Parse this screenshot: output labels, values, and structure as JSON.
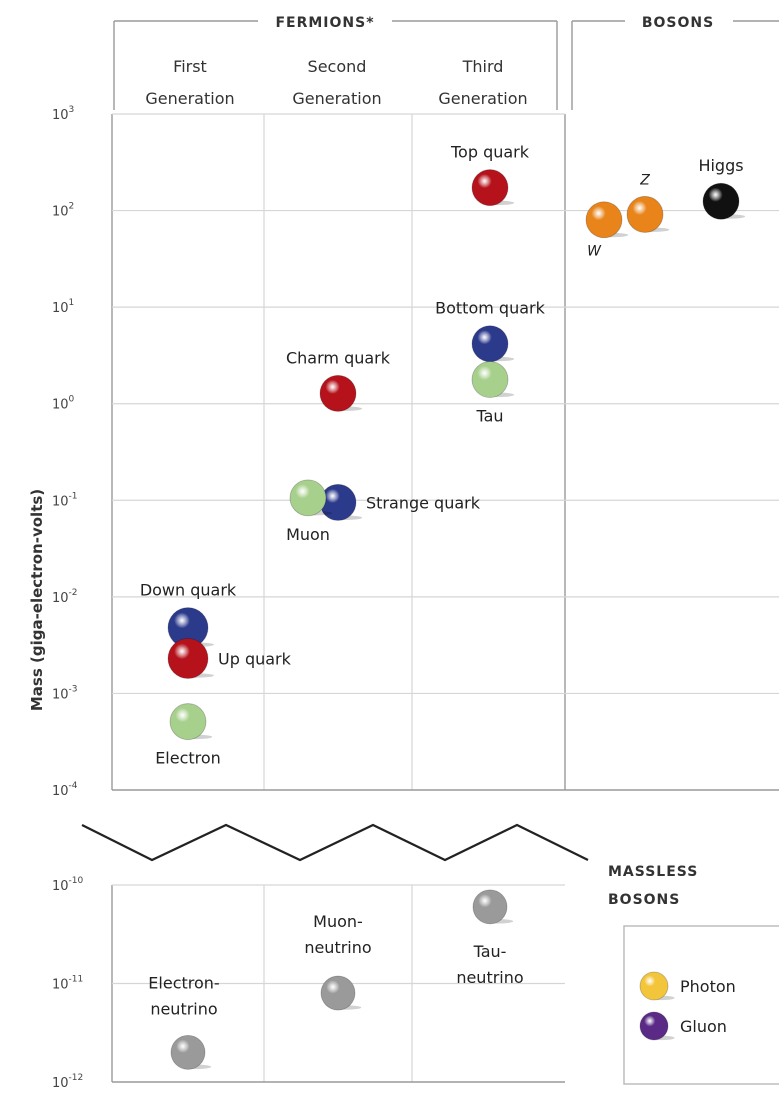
{
  "chart_data": {
    "type": "scatter",
    "ylabel": "Mass (giga-electron-volts)",
    "yscale": "log",
    "groups": {
      "fermions": "FERMIONS*",
      "bosons": "BOSONS"
    },
    "columns": [
      {
        "id": "gen1",
        "line1": "First",
        "line2": "Generation"
      },
      {
        "id": "gen2",
        "line1": "Second",
        "line2": "Generation"
      },
      {
        "id": "gen3",
        "line1": "Third",
        "line2": "Generation"
      }
    ],
    "upper_ticks": [
      {
        "base": "10",
        "exp": "3",
        "value": 1000
      },
      {
        "base": "10",
        "exp": "2",
        "value": 100
      },
      {
        "base": "10",
        "exp": "1",
        "value": 10
      },
      {
        "base": "10",
        "exp": "0",
        "value": 1
      },
      {
        "base": "10",
        "exp": "-1",
        "value": 0.1
      },
      {
        "base": "10",
        "exp": "-2",
        "value": 0.01
      },
      {
        "base": "10",
        "exp": "-3",
        "value": 0.001
      },
      {
        "base": "10",
        "exp": "-4",
        "value": 0.0001
      }
    ],
    "lower_ticks": [
      {
        "base": "10",
        "exp": "-10",
        "value": 1e-10
      },
      {
        "base": "10",
        "exp": "-11",
        "value": 1e-11
      },
      {
        "base": "10",
        "exp": "-12",
        "value": 1e-12
      }
    ],
    "upper_ylim": [
      0.0001,
      1000
    ],
    "lower_ylim": [
      1e-12,
      1e-10
    ],
    "particles": [
      {
        "name": "Down quark",
        "column": "gen1",
        "mass": 0.0048,
        "color": "#2c3a8c",
        "label_pos": "above"
      },
      {
        "name": "Up quark",
        "column": "gen1",
        "mass": 0.0023,
        "color": "#b5121b",
        "label_pos": "right"
      },
      {
        "name": "Electron",
        "column": "gen1",
        "mass": 0.000511,
        "color": "#a8d08d",
        "label_pos": "below"
      },
      {
        "name": "Charm quark",
        "column": "gen2",
        "mass": 1.28,
        "color": "#b5121b",
        "label_pos": "above"
      },
      {
        "name": "Strange quark",
        "column": "gen2",
        "mass": 0.095,
        "color": "#2c3a8c",
        "label_pos": "right"
      },
      {
        "name": "Muon",
        "column": "gen2",
        "mass": 0.106,
        "color": "#a8d08d",
        "label_pos": "below"
      },
      {
        "name": "Top quark",
        "column": "gen3",
        "mass": 173,
        "color": "#b5121b",
        "label_pos": "above"
      },
      {
        "name": "Bottom quark",
        "column": "gen3",
        "mass": 4.18,
        "color": "#2c3a8c",
        "label_pos": "above"
      },
      {
        "name": "Tau",
        "column": "gen3",
        "mass": 1.78,
        "color": "#a8d08d",
        "label_pos": "below"
      },
      {
        "name": "W",
        "column": "bosons",
        "mass": 80.4,
        "color": "#e8841a",
        "label_pos": "below-left"
      },
      {
        "name": "Z",
        "column": "bosons",
        "mass": 91.2,
        "color": "#e8841a",
        "label_pos": "above"
      },
      {
        "name": "Higgs",
        "column": "bosons",
        "mass": 125,
        "color": "#111111",
        "label_pos": "above"
      }
    ],
    "neutrinos": [
      {
        "line1": "Electron-",
        "line2": "neutrino",
        "column": "gen1",
        "mass": 2e-12,
        "color": "#9a9a9a"
      },
      {
        "line1": "Muon-",
        "line2": "neutrino",
        "column": "gen2",
        "mass": 8e-12,
        "color": "#9a9a9a"
      },
      {
        "line1": "Tau-",
        "line2": "neutrino",
        "column": "gen3",
        "mass": 6e-11,
        "color": "#9a9a9a"
      }
    ],
    "massless": {
      "line1": "MASSLESS",
      "line2": "BOSONS",
      "items": [
        {
          "name": "Photon",
          "color": "#f3c53a"
        },
        {
          "name": "Gluon",
          "color": "#5a2a86"
        }
      ]
    }
  }
}
